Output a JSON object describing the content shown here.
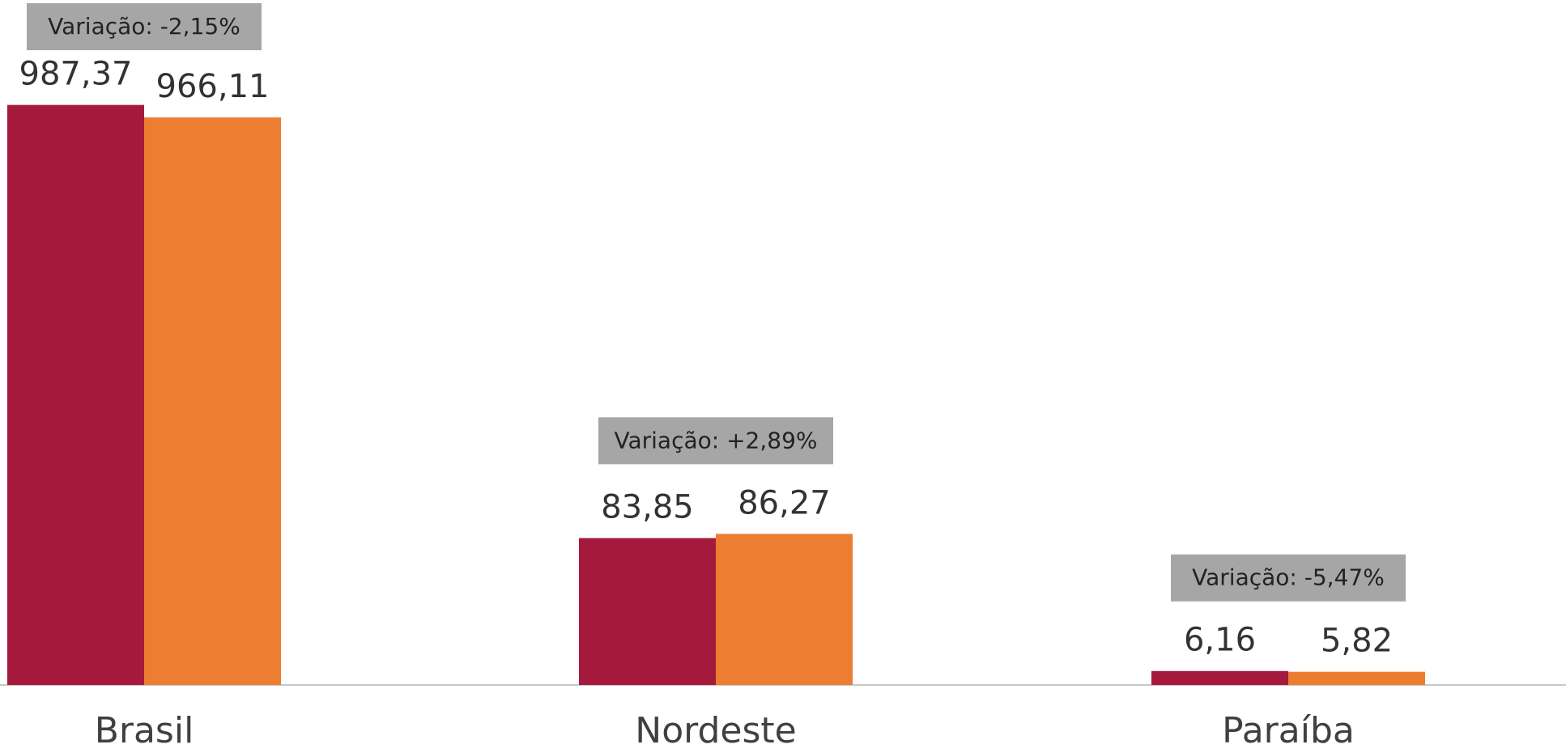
{
  "chart_data": [
    {
      "type": "bar",
      "categories": [
        "Brasil"
      ],
      "ylim": [
        0,
        1166
      ],
      "annotation": "Variação: -2,15%",
      "series": [
        {
          "color": "#a5193d",
          "values": [
            987.37
          ],
          "value_labels": [
            "987,37"
          ]
        },
        {
          "color": "#ed7d31",
          "values": [
            966.11
          ],
          "value_labels": [
            "966,11"
          ]
        }
      ]
    },
    {
      "type": "bar",
      "categories": [
        "Nordeste"
      ],
      "ylim": [
        0,
        391
      ],
      "annotation": "Variação: +2,89%",
      "series": [
        {
          "color": "#a5193d",
          "values": [
            83.85
          ],
          "value_labels": [
            "83,85"
          ]
        },
        {
          "color": "#ed7d31",
          "values": [
            86.27
          ],
          "value_labels": [
            "86,27"
          ]
        }
      ]
    },
    {
      "type": "bar",
      "categories": [
        "Paraíba"
      ],
      "ylim": [
        0,
        302
      ],
      "annotation": "Variação: -5,47%",
      "series": [
        {
          "color": "#a5193d",
          "values": [
            6.16
          ],
          "value_labels": [
            "6,16"
          ]
        },
        {
          "color": "#ed7d31",
          "values": [
            5.82
          ],
          "value_labels": [
            "5,82"
          ]
        }
      ]
    }
  ]
}
